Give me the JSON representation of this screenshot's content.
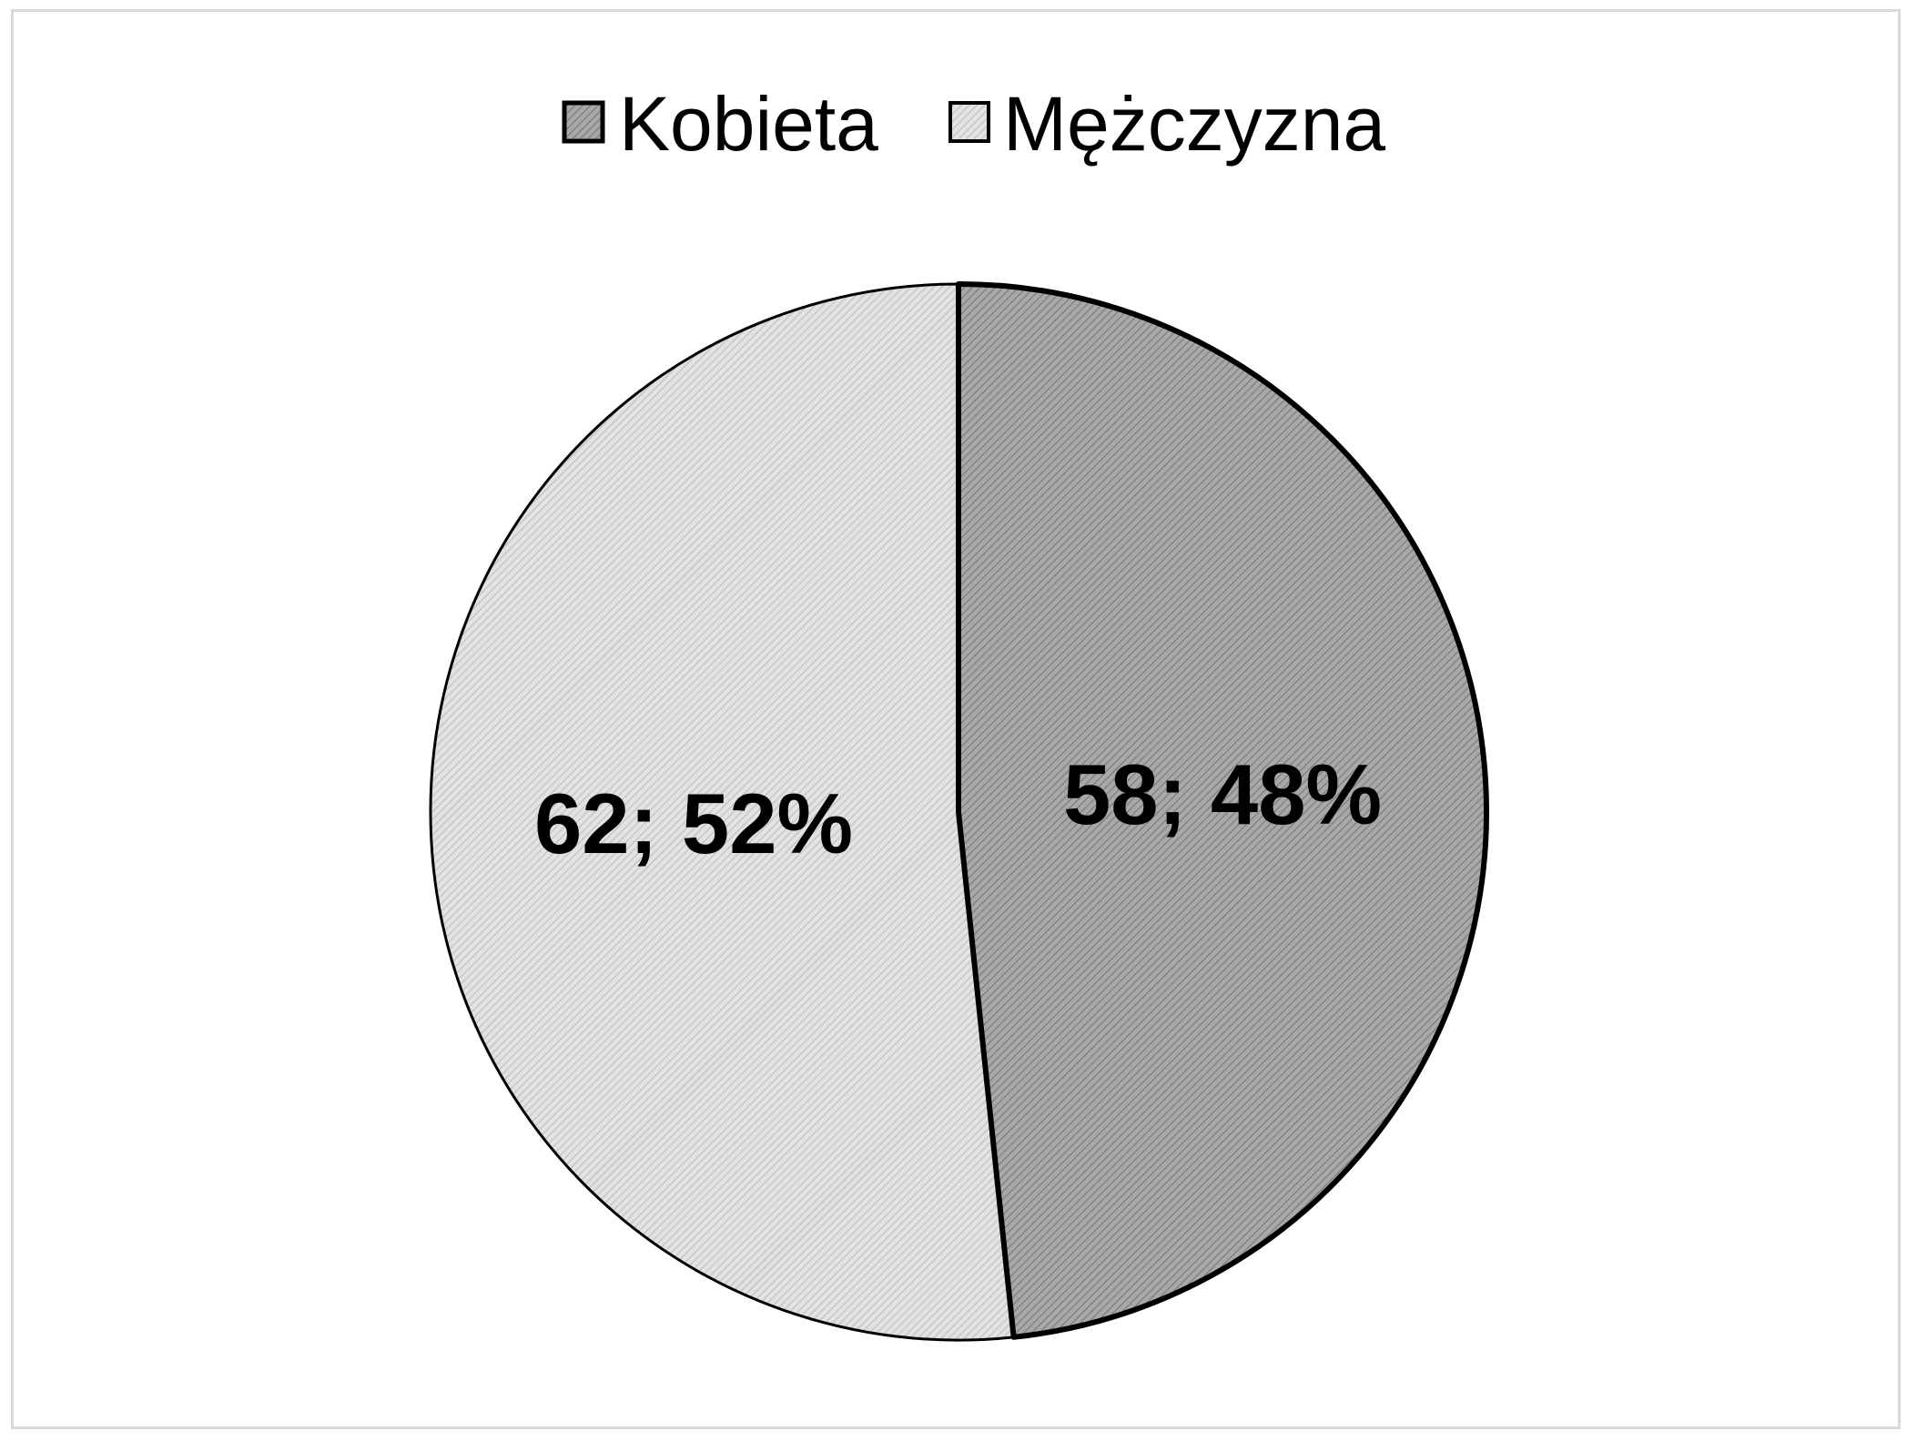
{
  "chart_data": {
    "type": "pie",
    "categories": [
      "Kobieta",
      "Mężczyzna"
    ],
    "values": [
      58,
      62
    ],
    "percentages": [
      48,
      52
    ],
    "data_labels": [
      "58; 48%",
      "62; 52%"
    ],
    "title": "",
    "legend_position": "top",
    "colors": {
      "Kobieta": "#9a9a9a",
      "Mężczyzna": "#d6d6d6"
    }
  }
}
